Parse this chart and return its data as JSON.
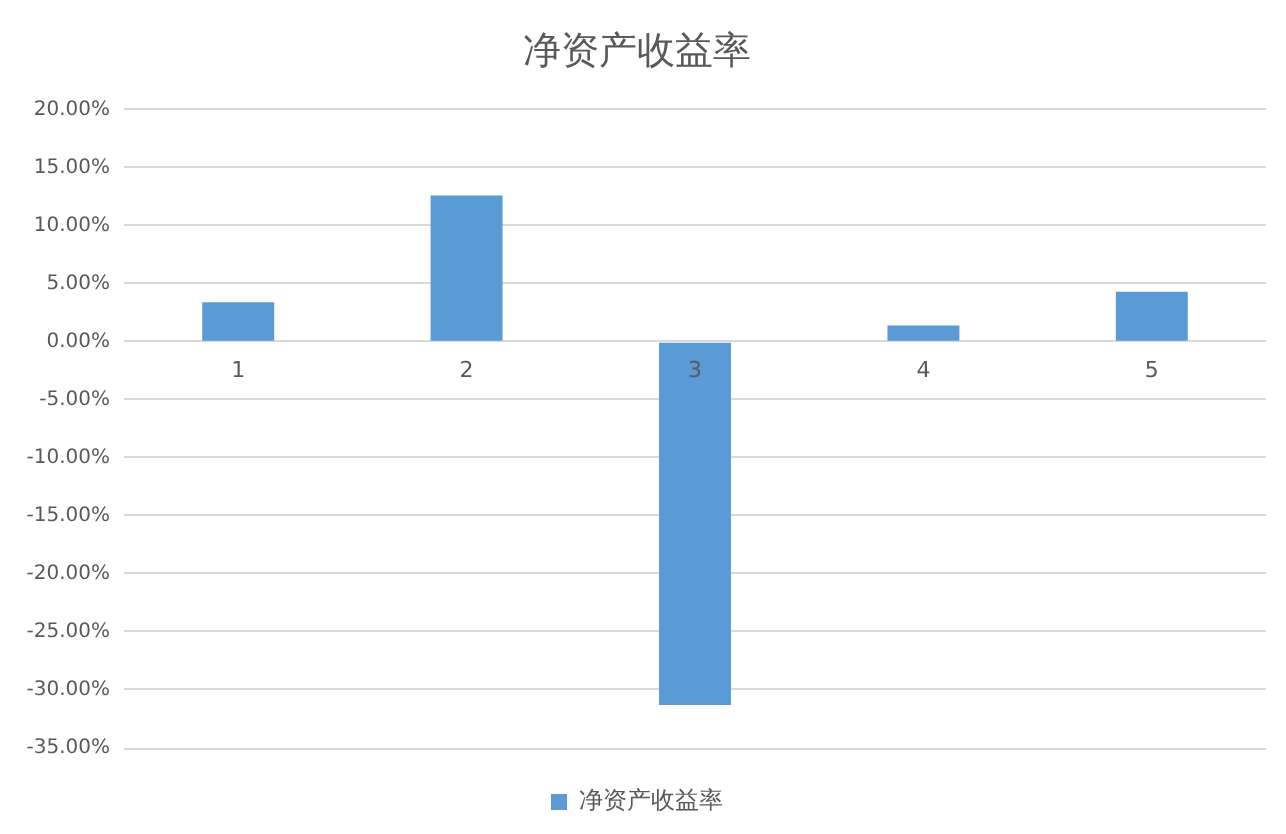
{
  "chart_data": {
    "type": "bar",
    "title": "净资产收益率",
    "categories": [
      "1",
      "2",
      "3",
      "4",
      "5"
    ],
    "series": [
      {
        "name": "净资产收益率",
        "color": "#5b9bd5",
        "values": [
          3.4,
          12.6,
          -31.3,
          1.4,
          4.3
        ]
      }
    ],
    "ylim": [
      -35,
      20
    ],
    "yticks": [
      {
        "value": -35,
        "label": "-35.00%"
      },
      {
        "value": -30,
        "label": "-30.00%"
      },
      {
        "value": -25,
        "label": "-25.00%"
      },
      {
        "value": -20,
        "label": "-20.00%"
      },
      {
        "value": -15,
        "label": "-15.00%"
      },
      {
        "value": -10,
        "label": "-10.00%"
      },
      {
        "value": -5,
        "label": "-5.00%"
      },
      {
        "value": 0,
        "label": "0.00%"
      },
      {
        "value": 5,
        "label": "5.00%"
      },
      {
        "value": 10,
        "label": "10.00%"
      },
      {
        "value": 15,
        "label": "15.00%"
      },
      {
        "value": 20,
        "label": "20.00%"
      }
    ],
    "grid": "y",
    "legend": "bottom"
  }
}
